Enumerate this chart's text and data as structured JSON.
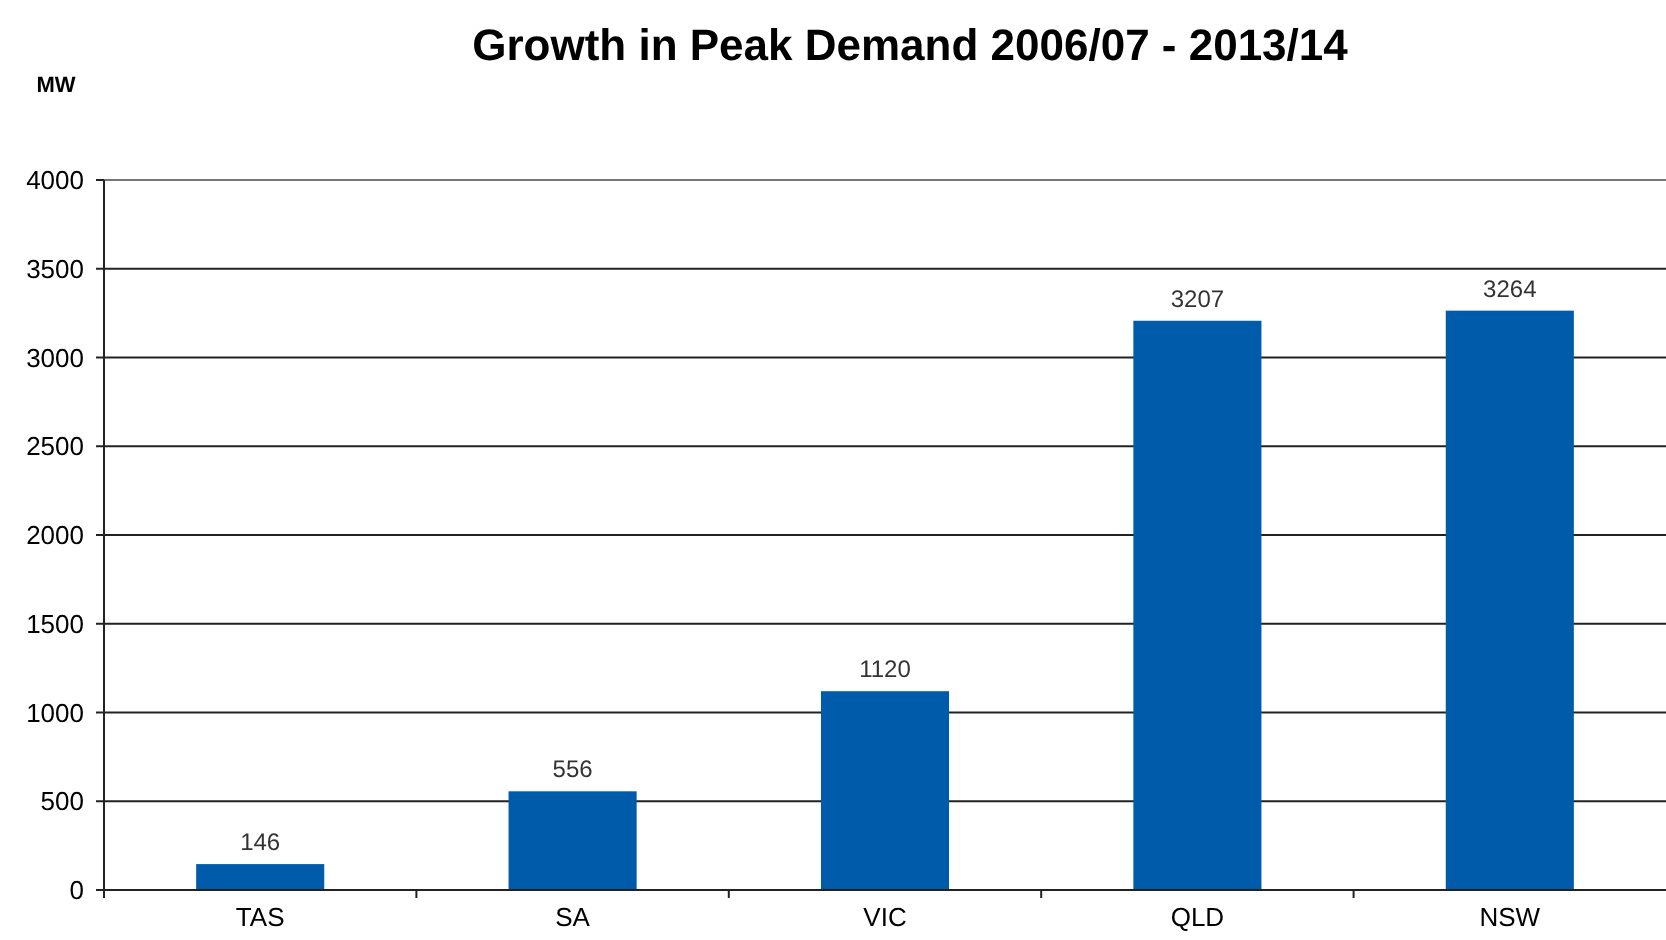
{
  "chart_data": {
    "type": "bar",
    "title": "Growth in Peak Demand 2006/07 - 2013/14",
    "ylabel": "MW",
    "categories": [
      "TAS",
      "SA",
      "VIC",
      "QLD",
      "NSW"
    ],
    "values": [
      146,
      556,
      1120,
      3207,
      3264
    ],
    "color": "#005baa",
    "ylim": [
      0,
      4000
    ],
    "yticks": [
      0,
      500,
      1000,
      1500,
      2000,
      2500,
      3000,
      3500,
      4000
    ],
    "grid": "y",
    "data_labels": true
  }
}
